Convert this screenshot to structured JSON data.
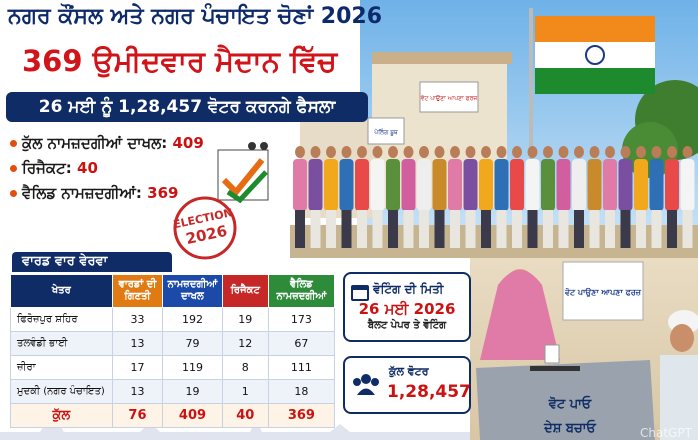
{
  "header": {
    "title": "ਨਗਰ ਕੌਂਸਲ ਅਤੇ ਨਗਰ ਪੰਚਾਇਤ ਚੋਣਾਂ 2026",
    "subtitle": "369 ਉਮੀਦਵਾਰ ਮੈਦਾਨ ਵਿੱਚ",
    "banner": "26 ਮਈ ਨੂੰ 1,28,457 ਵੋਟਰ ਕਰਨਗੇ ਫੈਸਲਾ"
  },
  "summary": [
    {
      "label": "ਕੁੱਲ ਨਾਮਜ਼ਦਗੀਆਂ ਦਾਖਲ:",
      "value": 409
    },
    {
      "label": "ਰਿਜੈਕਟ:",
      "value": 40
    },
    {
      "label": "ਵੈਲਿਡ ਨਾਮਜ਼ਦਗੀਆਂ:",
      "value": 369
    }
  ],
  "stamp": {
    "line1": "ELECTION",
    "line2": "2026"
  },
  "table": {
    "title": "ਵਾਰਡ ਵਾਰ ਵੇਰਵਾ",
    "columns": [
      "ਖੇਤਰ",
      "ਵਾਰਡਾਂ ਦੀ ਗਿਣਤੀ",
      "ਨਾਮਜ਼ਦਗੀਆਂ ਦਾਖਲ",
      "ਰਿਜੈਕਟ",
      "ਵੈਲਿਡ ਨਾਮਜ਼ਦਗੀਆਂ"
    ],
    "rows": [
      [
        "ਫਿਰੋਜ਼ਪੁਰ ਸ਼ਹਿਰ",
        33,
        192,
        19,
        173
      ],
      [
        "ਤਲਵੰਡੀ ਭਾਈ",
        13,
        79,
        12,
        67
      ],
      [
        "ਜ਼ੀਰਾ",
        17,
        119,
        8,
        111
      ],
      [
        "ਮੁਦਕੀ (ਨਗਰ ਪੰਚਾਇਤ)",
        13,
        19,
        1,
        18
      ]
    ],
    "total": [
      "ਕੁੱਲ",
      76,
      409,
      40,
      369
    ]
  },
  "voting_date": {
    "label": "ਵੋਟਿੰਗ ਦੀ ਮਿਤੀ",
    "date": "26 ਮਈ 2026",
    "note": "ਬੈਲਟ ਪੇਪਰ ਤੇ ਵੋਟਿੰਗ"
  },
  "total_voters": {
    "label": "ਕੁੱਲ ਵੋਟਰ",
    "value": "1,28,457"
  },
  "signs": {
    "booth": "ਪੋਲਿੰਗ ਬੂਥ",
    "duty_top": "ਵੋਟ ਪਾਉਣਾ ਆਪਣਾ ਫਰਜ਼",
    "duty": "ਵੋਟ ਪਾਉਣਾ ਆਪਣਾ ਫਰਜ਼",
    "ballot_1": "ਵੋਟ ਪਾਓ",
    "ballot_2": "ਦੇਸ਼ ਬਚਾਓ"
  },
  "watermark": "ChatGPT"
}
